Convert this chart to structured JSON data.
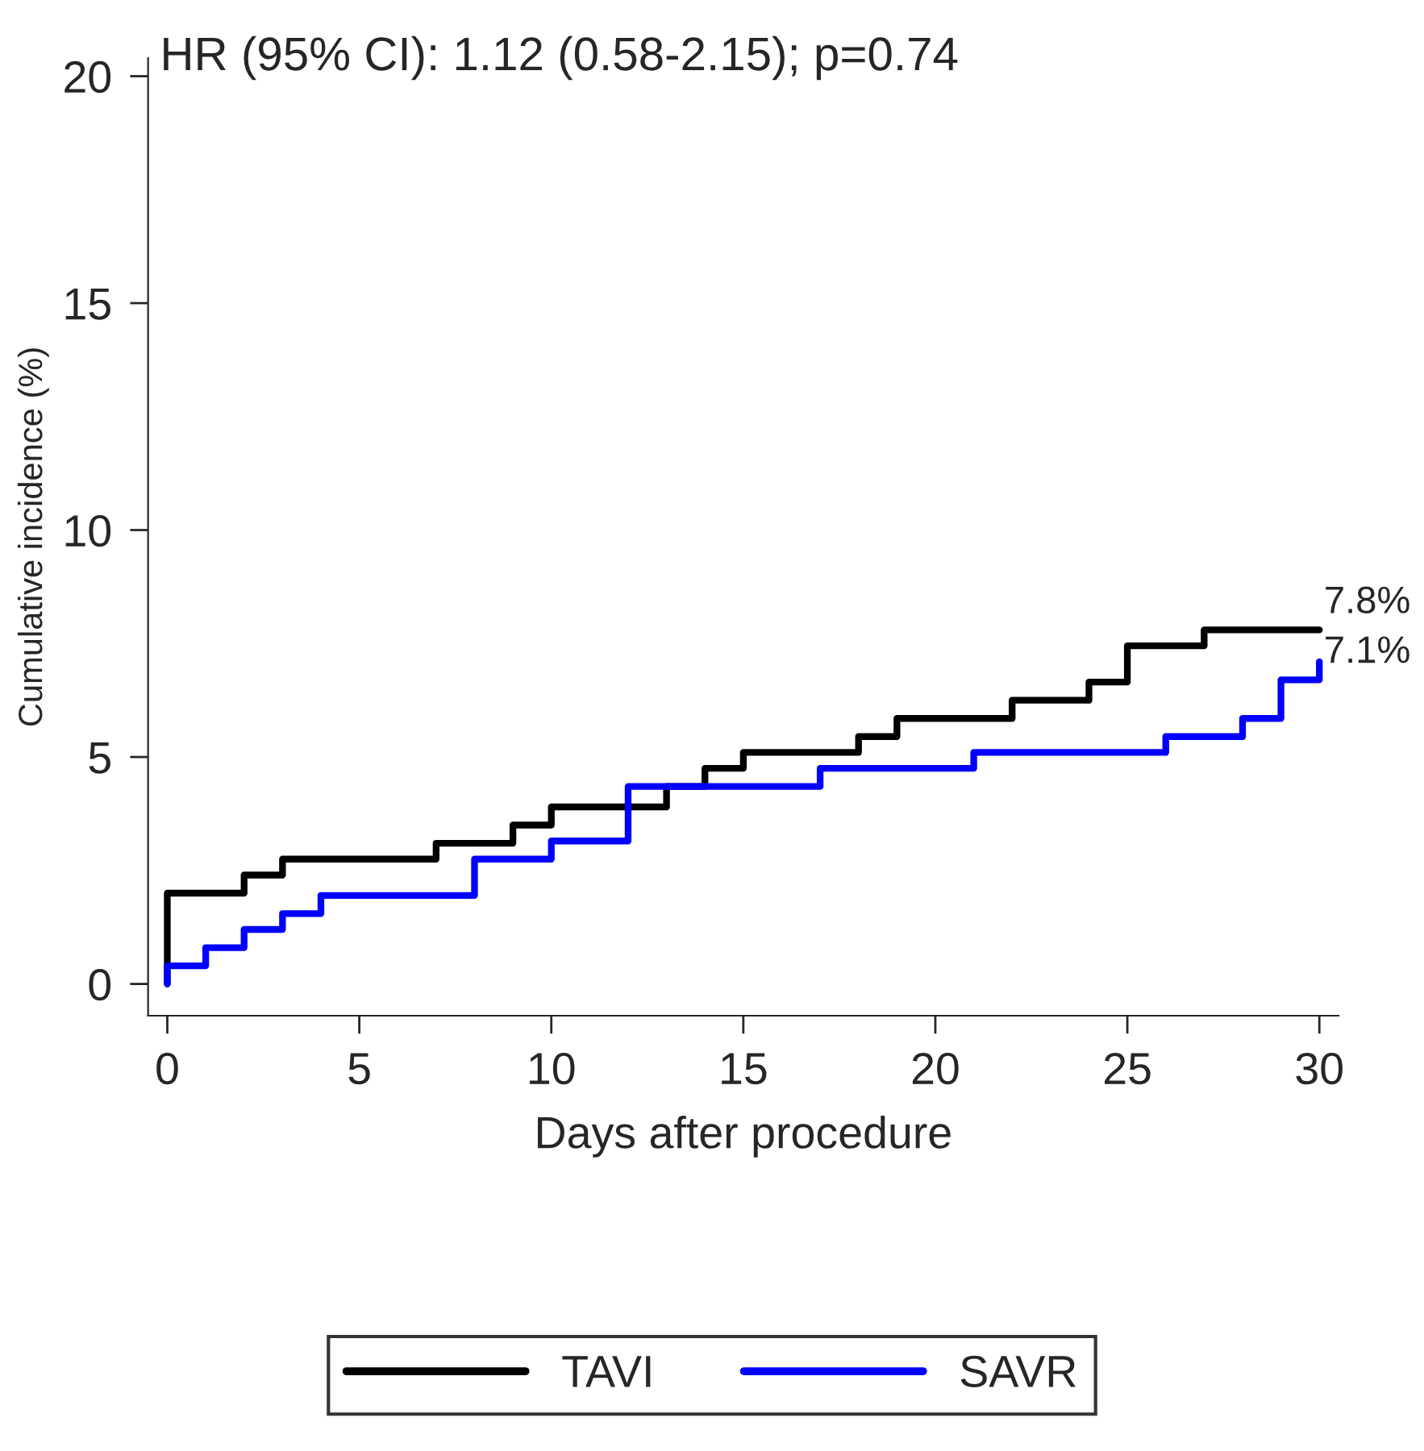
{
  "chart_data": {
    "type": "step",
    "xlabel": "Days after procedure",
    "ylabel": "Cumulative incidence (%)",
    "xlim": [
      -0.5,
      30.5
    ],
    "ylim": [
      -0.7,
      20.4
    ],
    "xticks": [
      0,
      5,
      10,
      15,
      20,
      25,
      30
    ],
    "yticks": [
      0,
      5,
      10,
      15,
      20
    ],
    "series": [
      {
        "name": "TAVI",
        "color": "#000000",
        "x": [
          0,
          0,
          2,
          3,
          7,
          9,
          10,
          13,
          14,
          15,
          18,
          19,
          22,
          24,
          25,
          27,
          30
        ],
        "values": [
          0,
          2.0,
          2.4,
          2.75,
          3.1,
          3.5,
          3.9,
          4.35,
          4.75,
          5.1,
          5.45,
          5.85,
          6.25,
          6.65,
          7.45,
          7.8,
          7.8
        ]
      },
      {
        "name": "SAVR",
        "color": "#0000ff",
        "x": [
          0,
          0,
          1,
          2,
          3,
          4,
          8,
          10,
          12,
          17,
          21,
          26,
          28,
          29,
          30
        ],
        "values": [
          0,
          0.4,
          0.8,
          1.2,
          1.55,
          1.95,
          2.75,
          3.15,
          4.35,
          4.75,
          5.1,
          5.45,
          5.85,
          6.7,
          7.1
        ]
      }
    ],
    "annotations": [
      "HR (95% CI): 1.12 (0.58-2.15); p=0.74",
      {
        "text": "7.8%",
        "x": 30,
        "y": 7.8
      },
      {
        "text": "7.1%",
        "x": 30,
        "y": 7.1
      }
    ],
    "legend": "bottom",
    "grid": false
  }
}
